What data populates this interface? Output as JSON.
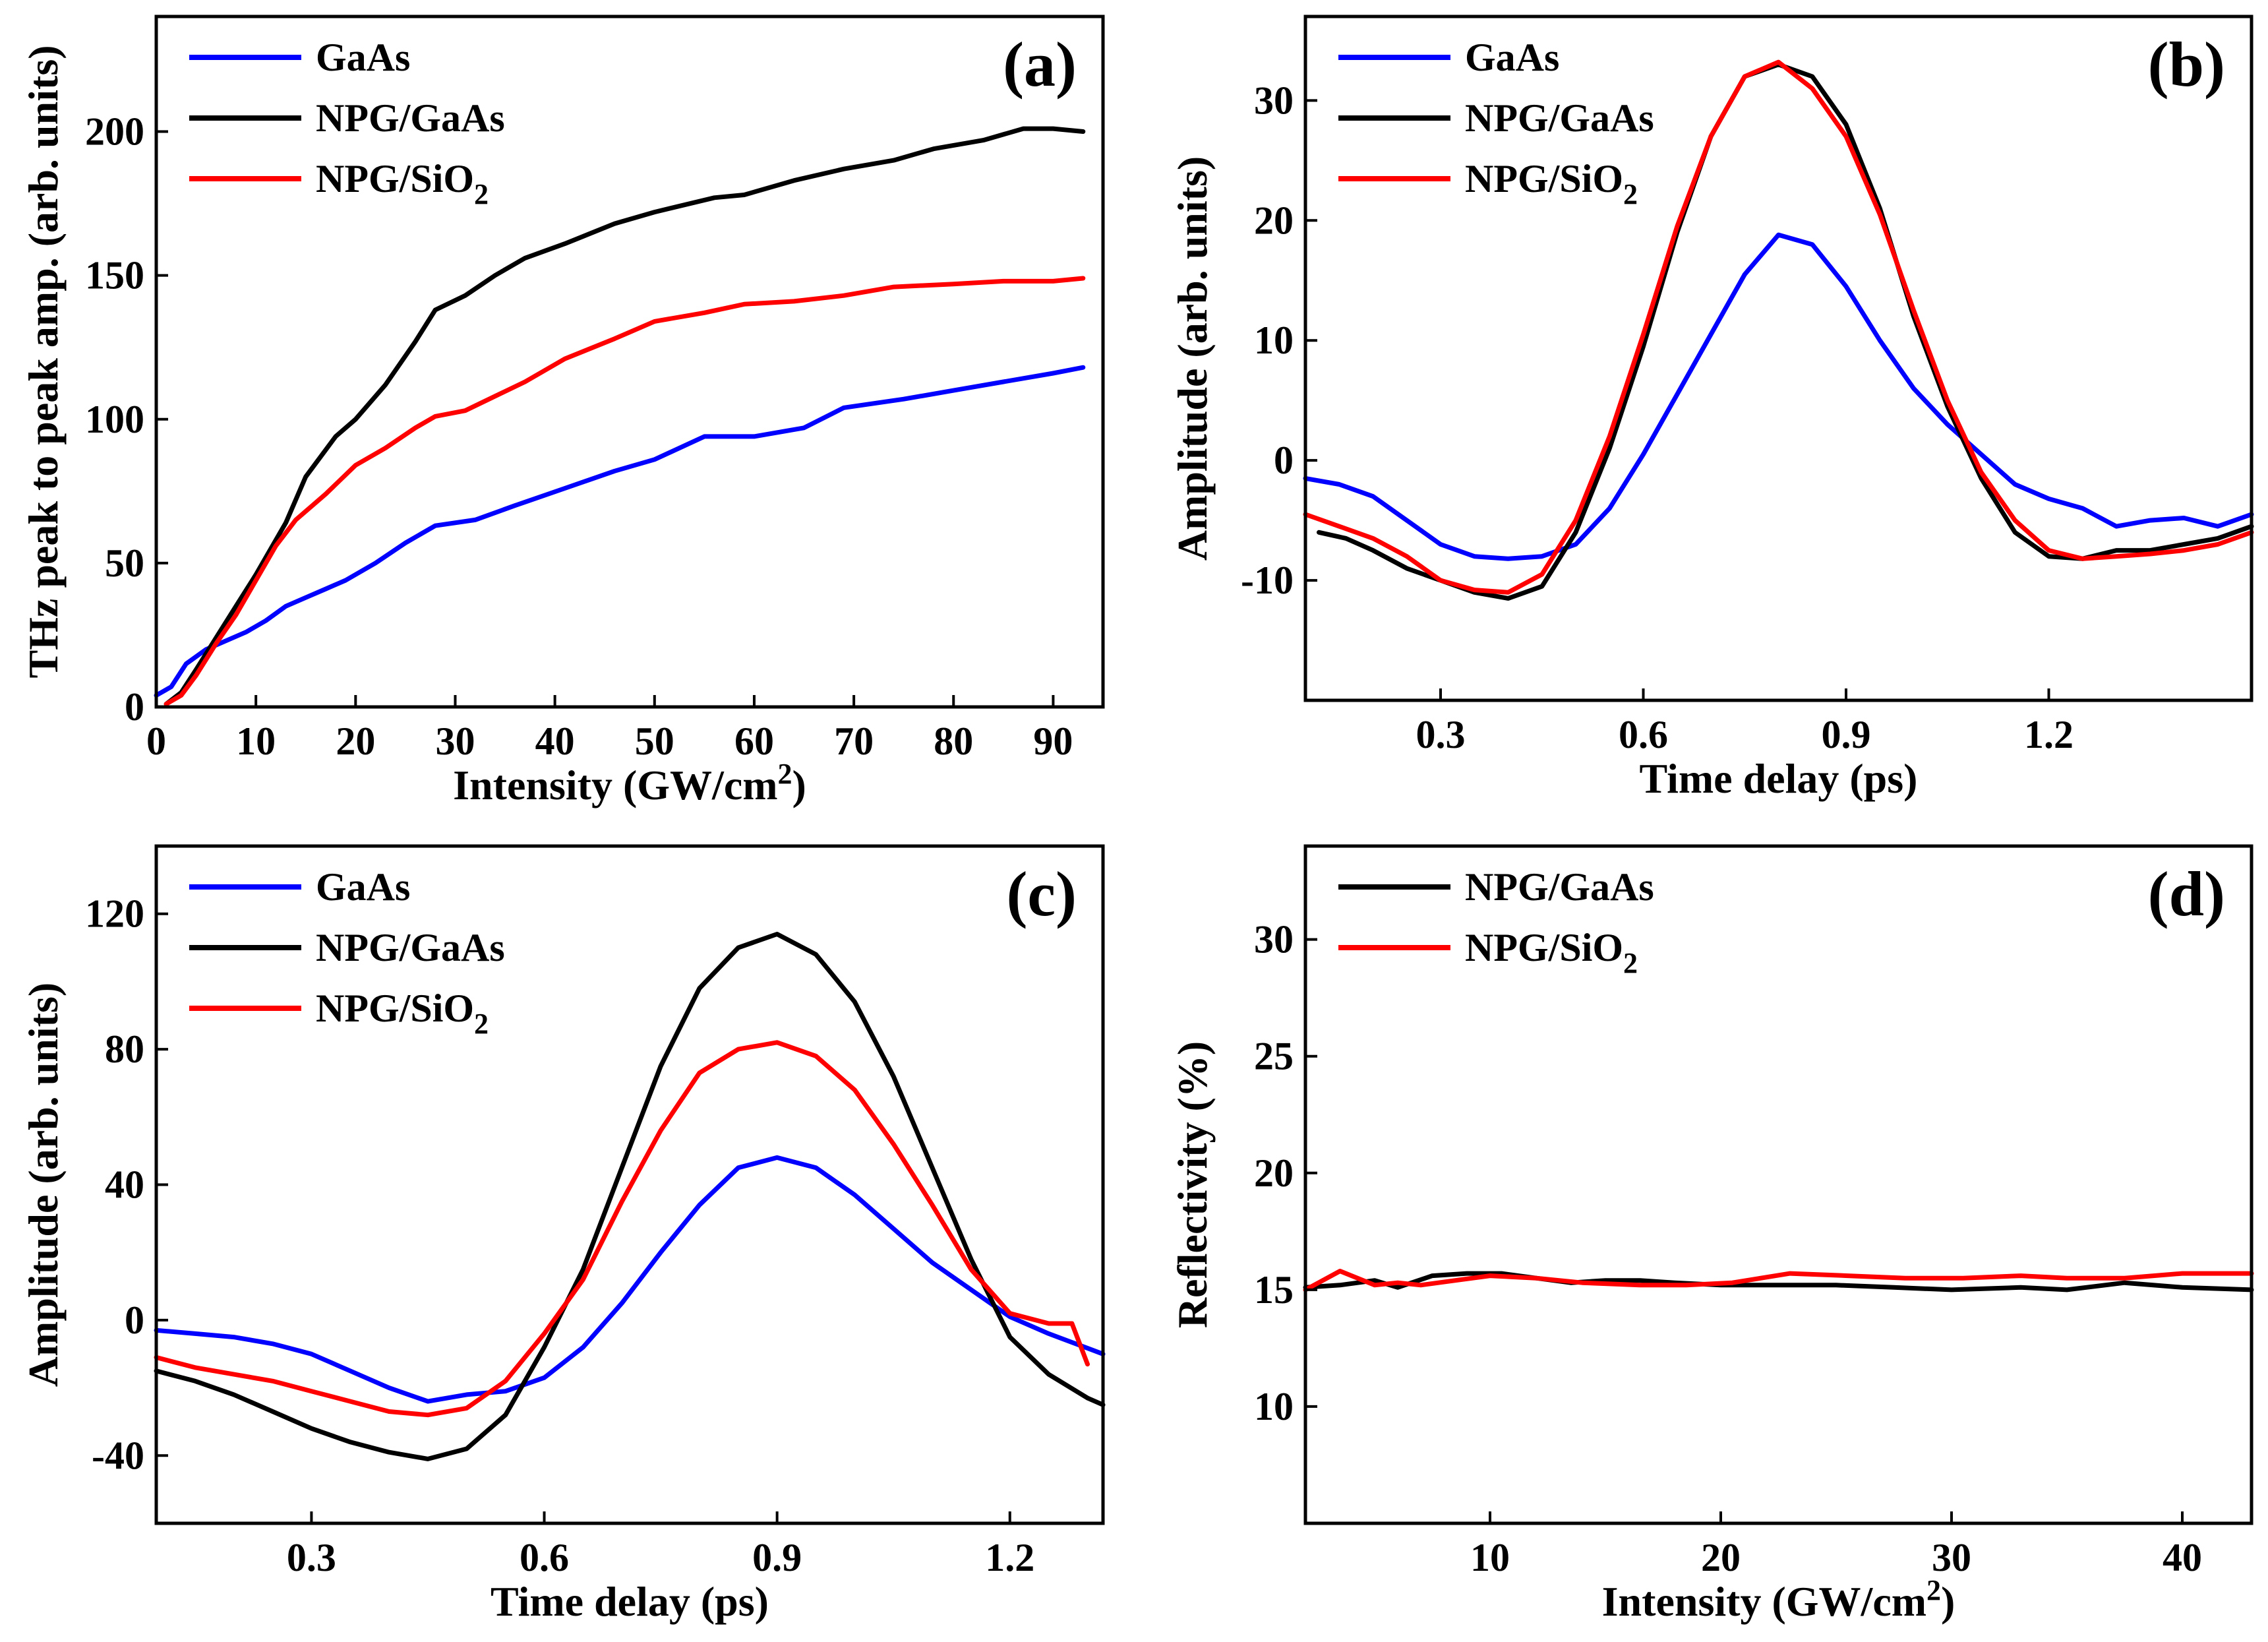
{
  "chart_data": [
    {
      "type": "line",
      "panel_label": "(a)",
      "xlabel": "Intensity (GW/cm",
      "xlabel_sup": "2",
      "xlabel_end": ")",
      "ylabel": "THz peak to peak amp. (arb. units)",
      "xlim": [
        0,
        95
      ],
      "ylim": [
        0,
        240
      ],
      "xticks": [
        0,
        10,
        20,
        30,
        40,
        50,
        60,
        70,
        80,
        90
      ],
      "yticks": [
        0,
        50,
        100,
        150,
        200
      ],
      "legend_position": "top-left",
      "series": [
        {
          "name": "GaAs",
          "name_sub": "",
          "color": "#0000ff",
          "x": [
            0,
            1.5,
            3,
            5,
            7,
            9,
            11,
            13,
            15,
            17,
            19,
            22,
            25,
            28,
            32,
            36,
            41,
            46,
            50,
            55,
            60,
            65,
            69,
            75,
            80,
            85,
            90,
            93
          ],
          "y": [
            4,
            7,
            15,
            20,
            23,
            26,
            30,
            35,
            38,
            41,
            44,
            50,
            57,
            63,
            65,
            70,
            76,
            82,
            86,
            94,
            94,
            97,
            104,
            107,
            110,
            113,
            116,
            118
          ]
        },
        {
          "name": "NPG/GaAs",
          "name_sub": "",
          "color": "#000000",
          "x": [
            1,
            2.5,
            4,
            6,
            8,
            10,
            13,
            15,
            18,
            20,
            23,
            26,
            28,
            31,
            34,
            37,
            41,
            46,
            50,
            56,
            59,
            64,
            69,
            74,
            78,
            83,
            87,
            90,
            93
          ],
          "y": [
            1,
            5,
            13,
            24,
            35,
            46,
            64,
            80,
            94,
            100,
            112,
            127,
            138,
            143,
            150,
            156,
            161,
            168,
            172,
            177,
            178,
            183,
            187,
            190,
            194,
            197,
            201,
            201,
            200
          ]
        },
        {
          "name": "NPG/SiO",
          "name_sub": "2",
          "color": "#ff0000",
          "x": [
            1,
            2.5,
            4,
            6,
            8,
            10,
            12,
            14,
            17,
            20,
            23,
            26,
            28,
            31,
            34,
            37,
            41,
            46,
            50,
            55,
            59,
            64,
            69,
            74,
            80,
            85,
            90,
            93
          ],
          "y": [
            1,
            4,
            11,
            22,
            32,
            44,
            56,
            65,
            74,
            84,
            90,
            97,
            101,
            103,
            108,
            113,
            121,
            128,
            134,
            137,
            140,
            141,
            143,
            146,
            147,
            148,
            148,
            149
          ]
        }
      ]
    },
    {
      "type": "line",
      "panel_label": "(b)",
      "xlabel": "Time delay (ps)",
      "ylabel": "Amplitude (arb. units)",
      "xlim": [
        0.1,
        1.5
      ],
      "ylim": [
        -20,
        37
      ],
      "xticks": [
        0.3,
        0.6,
        0.9,
        1.2
      ],
      "xtick_labels": [
        "0.3",
        "0.6",
        "0.9",
        "1.2"
      ],
      "yticks": [
        -10,
        0,
        10,
        20,
        30
      ],
      "legend_position": "top-left",
      "series": [
        {
          "name": "GaAs",
          "name_sub": "",
          "color": "#0000ff",
          "x": [
            0.1,
            0.15,
            0.2,
            0.25,
            0.3,
            0.35,
            0.4,
            0.45,
            0.5,
            0.55,
            0.6,
            0.65,
            0.7,
            0.75,
            0.8,
            0.85,
            0.9,
            0.95,
            1.0,
            1.05,
            1.1,
            1.15,
            1.2,
            1.25,
            1.3,
            1.35,
            1.4,
            1.45,
            1.5
          ],
          "y": [
            -1.5,
            -2.0,
            -3.0,
            -5.0,
            -7.0,
            -8.0,
            -8.2,
            -8.0,
            -7.0,
            -4.0,
            0.5,
            5.5,
            10.5,
            15.5,
            18.8,
            18.0,
            14.5,
            10.0,
            6.0,
            3.0,
            0.5,
            -2.0,
            -3.2,
            -4.0,
            -5.5,
            -5.0,
            -4.8,
            -5.5,
            -4.5
          ]
        },
        {
          "name": "NPG/GaAs",
          "name_sub": "",
          "color": "#000000",
          "x": [
            0.12,
            0.16,
            0.2,
            0.25,
            0.3,
            0.35,
            0.4,
            0.45,
            0.5,
            0.55,
            0.6,
            0.65,
            0.7,
            0.75,
            0.8,
            0.85,
            0.9,
            0.95,
            1.0,
            1.05,
            1.1,
            1.15,
            1.2,
            1.25,
            1.3,
            1.35,
            1.4,
            1.45,
            1.5
          ],
          "y": [
            -6.0,
            -6.5,
            -7.5,
            -9.0,
            -10.0,
            -11.0,
            -11.5,
            -10.5,
            -6.0,
            1.0,
            9.5,
            19.0,
            27.0,
            32.0,
            33.0,
            32.0,
            28.0,
            21.0,
            12.0,
            4.5,
            -1.5,
            -6.0,
            -8.0,
            -8.2,
            -7.5,
            -7.5,
            -7.0,
            -6.5,
            -5.5
          ]
        },
        {
          "name": "NPG/SiO",
          "name_sub": "2",
          "color": "#ff0000",
          "x": [
            0.1,
            0.15,
            0.2,
            0.25,
            0.3,
            0.35,
            0.4,
            0.45,
            0.5,
            0.55,
            0.6,
            0.65,
            0.7,
            0.75,
            0.8,
            0.85,
            0.9,
            0.95,
            1.0,
            1.05,
            1.1,
            1.15,
            1.2,
            1.25,
            1.3,
            1.35,
            1.4,
            1.45,
            1.5
          ],
          "y": [
            -4.5,
            -5.5,
            -6.5,
            -8.0,
            -10.0,
            -10.8,
            -11.0,
            -9.5,
            -5.0,
            2.0,
            10.5,
            19.5,
            27.0,
            32.0,
            33.2,
            31.0,
            27.0,
            20.5,
            12.5,
            5.0,
            -1.0,
            -5.0,
            -7.5,
            -8.2,
            -8.0,
            -7.8,
            -7.5,
            -7.0,
            -6.0
          ]
        }
      ]
    },
    {
      "type": "line",
      "panel_label": "(c)",
      "xlabel": "Time delay (ps)",
      "ylabel": "Amplitude (arb. units)",
      "xlim": [
        0.1,
        1.32
      ],
      "ylim": [
        -60,
        140
      ],
      "xticks": [
        0.3,
        0.6,
        0.9,
        1.2
      ],
      "xtick_labels": [
        "0.3",
        "0.6",
        "0.9",
        "1.2"
      ],
      "yticks": [
        -40,
        0,
        40,
        80,
        120
      ],
      "legend_position": "top-left",
      "series": [
        {
          "name": "GaAs",
          "name_sub": "",
          "color": "#0000ff",
          "x": [
            0.1,
            0.15,
            0.2,
            0.25,
            0.3,
            0.35,
            0.4,
            0.45,
            0.5,
            0.55,
            0.6,
            0.65,
            0.7,
            0.75,
            0.8,
            0.85,
            0.9,
            0.95,
            1.0,
            1.05,
            1.1,
            1.15,
            1.2,
            1.25,
            1.32
          ],
          "y": [
            -3,
            -4,
            -5,
            -7,
            -10,
            -15,
            -20,
            -24,
            -22,
            -21,
            -17,
            -8,
            5,
            20,
            34,
            45,
            48,
            45,
            37,
            27,
            17,
            9,
            1,
            -4,
            -10
          ]
        },
        {
          "name": "NPG/GaAs",
          "name_sub": "",
          "color": "#000000",
          "x": [
            0.1,
            0.15,
            0.2,
            0.25,
            0.3,
            0.35,
            0.4,
            0.45,
            0.5,
            0.55,
            0.6,
            0.65,
            0.7,
            0.75,
            0.8,
            0.85,
            0.9,
            0.95,
            1.0,
            1.05,
            1.1,
            1.15,
            1.2,
            1.25,
            1.3,
            1.32
          ],
          "y": [
            -15,
            -18,
            -22,
            -27,
            -32,
            -36,
            -39,
            -41,
            -38,
            -28,
            -8,
            15,
            45,
            75,
            98,
            110,
            114,
            108,
            94,
            72,
            45,
            18,
            -5,
            -16,
            -23,
            -25
          ]
        },
        {
          "name": "NPG/SiO",
          "name_sub": "2",
          "color": "#ff0000",
          "x": [
            0.1,
            0.15,
            0.2,
            0.25,
            0.3,
            0.35,
            0.4,
            0.45,
            0.5,
            0.55,
            0.6,
            0.65,
            0.7,
            0.75,
            0.8,
            0.85,
            0.9,
            0.95,
            1.0,
            1.05,
            1.1,
            1.15,
            1.2,
            1.25,
            1.28,
            1.3
          ],
          "y": [
            -11,
            -14,
            -16,
            -18,
            -21,
            -24,
            -27,
            -28,
            -26,
            -18,
            -4,
            12,
            35,
            56,
            73,
            80,
            82,
            78,
            68,
            52,
            34,
            15,
            2,
            -1,
            -1,
            -13
          ]
        }
      ]
    },
    {
      "type": "line",
      "panel_label": "(d)",
      "xlabel": "Intensity (GW/cm",
      "xlabel_sup": "2",
      "xlabel_end": ")",
      "ylabel": "Reflectivity (%)",
      "xlim": [
        2,
        43
      ],
      "ylim": [
        5,
        34
      ],
      "xticks": [
        10,
        20,
        30,
        40
      ],
      "yticks": [
        10,
        15,
        20,
        25,
        30
      ],
      "legend_position": "top-left",
      "series": [
        {
          "name": "NPG/GaAs",
          "name_sub": "",
          "color": "#000000",
          "x": [
            2,
            3.5,
            5,
            6,
            7.5,
            9,
            10.5,
            12,
            13.5,
            15,
            16.5,
            18,
            20,
            22,
            25,
            27.5,
            30,
            33,
            35,
            37.5,
            40,
            43
          ],
          "y": [
            15.1,
            15.2,
            15.4,
            15.1,
            15.6,
            15.7,
            15.7,
            15.5,
            15.3,
            15.4,
            15.4,
            15.3,
            15.2,
            15.2,
            15.2,
            15.1,
            15.0,
            15.1,
            15.0,
            15.3,
            15.1,
            15.0
          ]
        },
        {
          "name": "NPG/SiO",
          "name_sub": "2",
          "color": "#ff0000",
          "x": [
            2,
            3.5,
            5,
            6,
            7,
            8.5,
            10,
            12,
            14,
            16.5,
            18.5,
            20.5,
            23,
            25.5,
            28,
            30.5,
            33,
            35,
            37.5,
            40,
            43
          ],
          "y": [
            15.0,
            15.8,
            15.2,
            15.3,
            15.2,
            15.4,
            15.6,
            15.5,
            15.3,
            15.2,
            15.2,
            15.3,
            15.7,
            15.6,
            15.5,
            15.5,
            15.6,
            15.5,
            15.5,
            15.7,
            15.7
          ]
        }
      ]
    }
  ]
}
